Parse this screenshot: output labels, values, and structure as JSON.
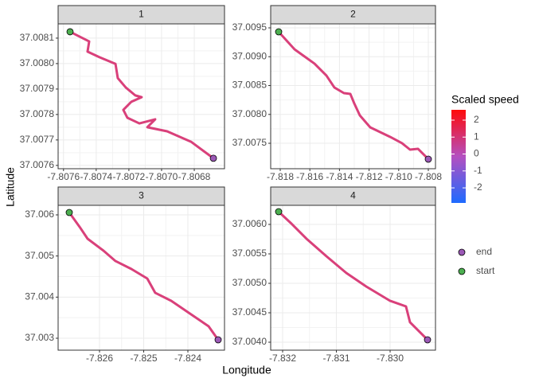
{
  "figure": {
    "xlabel": "Longitude",
    "ylabel": "Latitude",
    "colorbar": {
      "title": "Scaled speed",
      "ticks": [
        2,
        1,
        0,
        -1,
        -2
      ],
      "lim": [
        -2.89,
        2.61
      ],
      "low_color": "#1e6bff",
      "mid_color": "#b44fc0",
      "high_color": "#ff0a0a"
    },
    "points": [
      {
        "name": "end",
        "color": "#9b59b6"
      },
      {
        "name": "start",
        "color": "#4caf50"
      }
    ]
  },
  "chart_data": [
    {
      "type": "line",
      "title": "1",
      "color": "#d9407a",
      "grid": true,
      "x": [
        -7.80756,
        -7.807443,
        -7.807453,
        -7.80738,
        -7.807282,
        -7.807268,
        -7.807219,
        -7.807161,
        -7.807122,
        -7.807185,
        -7.807234,
        -7.807209,
        -7.807136,
        -7.807039,
        -7.807087,
        -7.806966,
        -7.80682,
        -7.806683
      ],
      "y": [
        37.008125,
        37.008087,
        37.008047,
        37.008025,
        37.007999,
        37.007943,
        37.007906,
        37.007875,
        37.007868,
        37.00785,
        37.007818,
        37.007787,
        37.007765,
        37.007781,
        37.00775,
        37.007734,
        37.007693,
        37.007628
      ],
      "xlim": [
        -7.807633,
        -7.806615
      ],
      "ylim": [
        37.007587,
        37.008156
      ],
      "xticks": [
        -7.8076,
        -7.8074,
        -7.8072,
        {
          "value": -7.807,
          "label": "-7.8070"
        },
        -7.8068
      ],
      "yticks": [
        37.0076,
        37.0077,
        37.0078,
        37.0079,
        {
          "value": 37.008,
          "label": "37.0080"
        },
        37.0081
      ]
    },
    {
      "type": "line",
      "title": "2",
      "color": "#d9407a",
      "grid": true,
      "x": [
        -7.818107,
        -7.817032,
        -7.815688,
        -7.814882,
        -7.814344,
        -7.813699,
        -7.813269,
        -7.813,
        -7.812624,
        -7.811925,
        -7.810581,
        -7.809775,
        -7.809237,
        -7.808699,
        -7.808
      ],
      "y": [
        37.009431,
        37.009128,
        37.00888,
        37.008673,
        37.008466,
        37.008369,
        37.008356,
        37.00819,
        37.007983,
        37.007776,
        37.007611,
        37.007501,
        37.00739,
        37.007404,
        37.007225
      ],
      "xlim": [
        -7.818645,
        -7.807516
      ],
      "ylim": [
        37.007059,
        37.009569
      ],
      "xticks": [
        -7.818,
        -7.816,
        -7.814,
        -7.812,
        {
          "value": -7.81,
          "label": "-7.810"
        },
        -7.808
      ],
      "yticks": [
        37.0075,
        {
          "value": 37.008,
          "label": "37.0080"
        },
        37.0085,
        {
          "value": 37.009,
          "label": "37.0090"
        },
        37.0095
      ]
    },
    {
      "type": "line",
      "title": "3",
      "color": "#d9407a",
      "grid": true,
      "x": [
        -7.826685,
        -7.826452,
        -7.82627,
        -7.82591,
        -7.82564,
        -7.825279,
        -7.824919,
        -7.824739,
        -7.824377,
        -7.823928,
        -7.823531,
        -7.823315
      ],
      "y": [
        37.006058,
        37.00571,
        37.005419,
        37.005129,
        37.004878,
        37.004684,
        37.004452,
        37.004104,
        37.00391,
        37.003581,
        37.003291,
        37.002962
      ],
      "xlim": [
        -7.826937,
        -7.823171
      ],
      "ylim": [
        37.00271,
        37.006232
      ],
      "xticks": [
        -7.826,
        -7.825,
        -7.824
      ],
      "yticks": [
        37.003,
        37.004,
        37.005,
        37.006
      ]
    },
    {
      "type": "line",
      "title": "4",
      "color": "#d9407a",
      "grid": true,
      "x": [
        -7.832074,
        -7.831852,
        -7.831556,
        -7.831185,
        -7.830815,
        -7.830445,
        -7.830001,
        -7.829705,
        -7.82963,
        -7.829304
      ],
      "y": [
        37.006216,
        37.006027,
        37.005757,
        37.005459,
        37.005176,
        37.004946,
        37.004703,
        37.004608,
        37.004338,
        37.004041
      ],
      "xlim": [
        -7.832222,
        -7.829156
      ],
      "ylim": [
        37.003865,
        37.006324
      ],
      "xticks": [
        -7.832,
        -7.831,
        {
          "value": -7.83,
          "label": "-7.830"
        }
      ],
      "yticks": [
        {
          "value": 37.004,
          "label": "37.0040"
        },
        37.0045,
        {
          "value": 37.005,
          "label": "37.0050"
        },
        37.0055,
        {
          "value": 37.006,
          "label": "37.0060"
        }
      ]
    }
  ]
}
